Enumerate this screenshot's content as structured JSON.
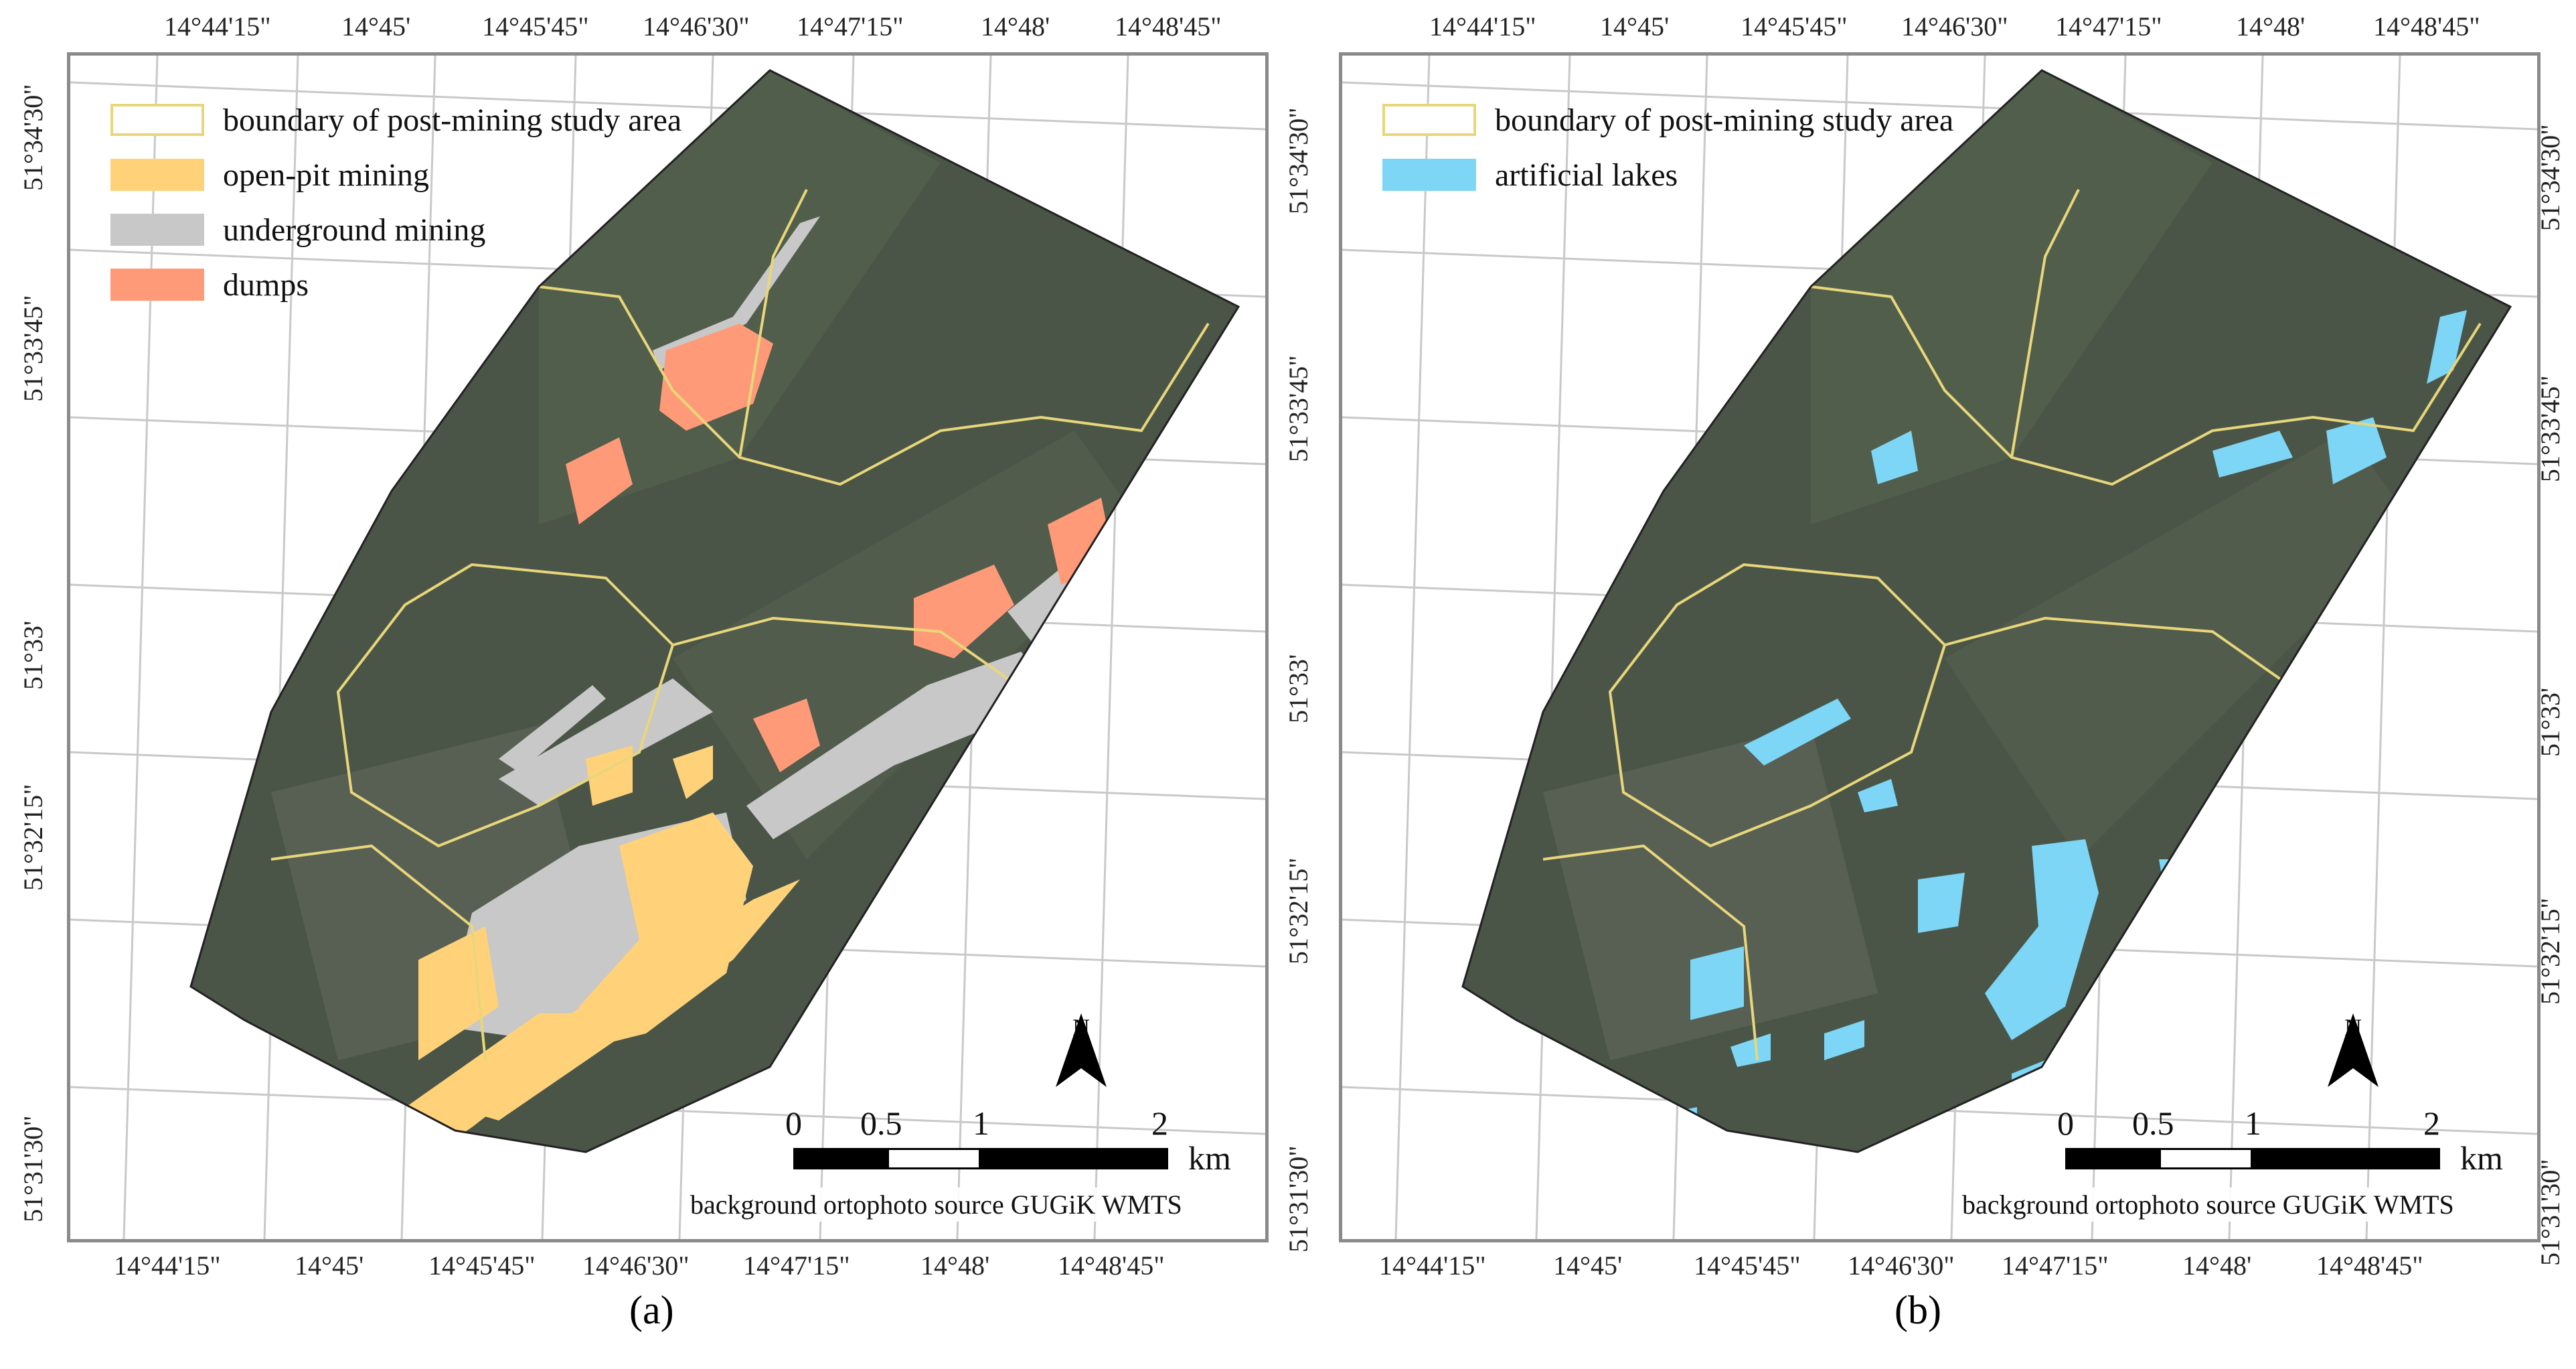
{
  "top_lon_labels": [
    "14°44'15\"",
    "14°45'",
    "14°45'45\"",
    "14°46'30\"",
    "14°47'15\"",
    "14°48'",
    "14°48'45\""
  ],
  "bottom_lon_labels": [
    "14°44'15\"",
    "14°45'",
    "14°45'45\"",
    "14°46'30\"",
    "14°47'15\"",
    "14°48'",
    "14°48'45\""
  ],
  "lat_labels": [
    "51°34'30\"",
    "51°33'45\"",
    "51°33'",
    "51°32'15\"",
    "51°31'30\""
  ],
  "panel_a": {
    "caption": "(a)",
    "legend": [
      {
        "label": "boundary of post-mining study area",
        "swatch": "boundary",
        "color": "#e8d67a"
      },
      {
        "label": "open-pit mining",
        "swatch": "fill",
        "color": "#ffd27a"
      },
      {
        "label": "underground mining",
        "swatch": "fill",
        "color": "#c8c8c8"
      },
      {
        "label": "dumps",
        "swatch": "fill",
        "color": "#ff9a78"
      }
    ]
  },
  "panel_b": {
    "caption": "(b)",
    "legend": [
      {
        "label": "boundary of post-mining study area",
        "swatch": "boundary",
        "color": "#e8d67a"
      },
      {
        "label": "artificial lakes",
        "swatch": "fill",
        "color": "#7dd6f5"
      }
    ]
  },
  "scalebar": {
    "ticks": [
      "0",
      "0.5",
      "1",
      "2"
    ],
    "unit": "km"
  },
  "north_label": "N",
  "source_note": "background ortophoto source GUGiK WMTS",
  "colors": {
    "imagery": "#4a5548",
    "grid": "#c9c9c9",
    "frame": "#8a8a8a"
  }
}
